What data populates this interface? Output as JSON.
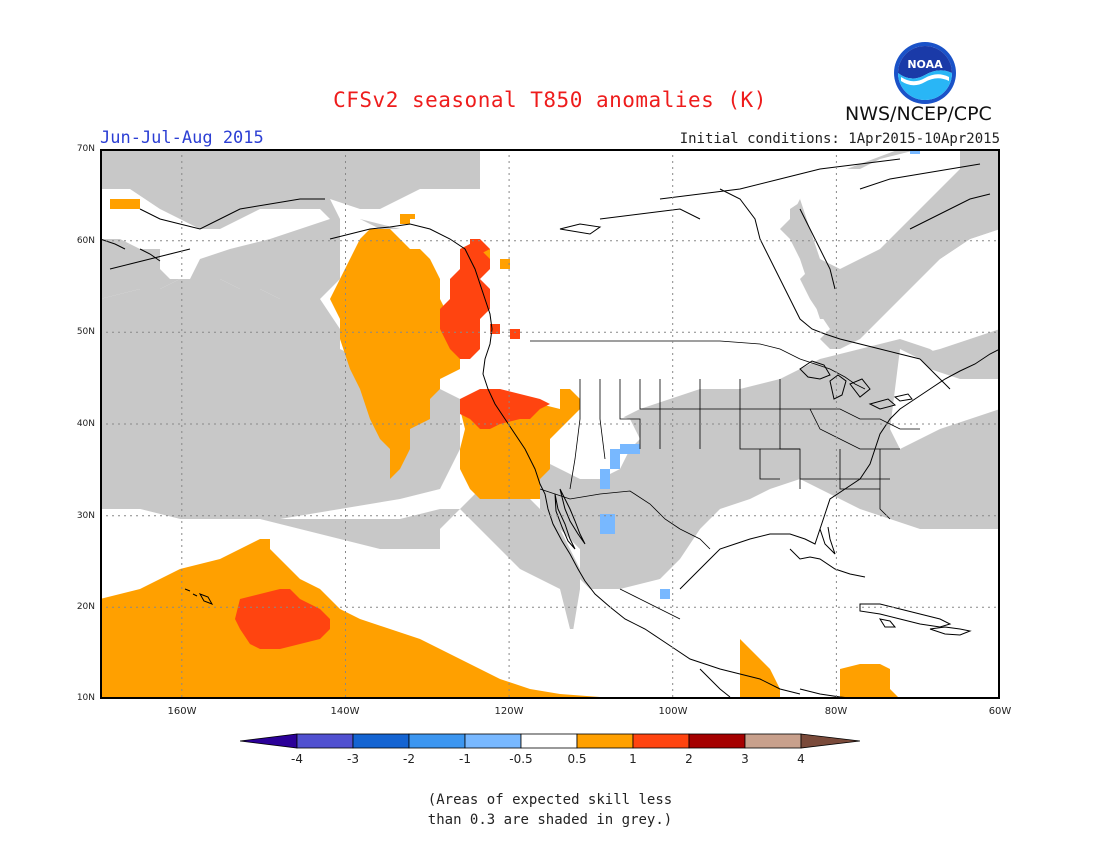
{
  "header": {
    "title": "CFSv2 seasonal T850 anomalies (K)",
    "season": "Jun-Jul-Aug 2015",
    "initial_conditions": "Initial conditions: 1Apr2015-10Apr2015",
    "agency": "NWS/NCEP/CPC",
    "logo_text": "NOAA"
  },
  "map": {
    "region": "North America and Northeast Pacific",
    "lat_range": [
      10,
      70
    ],
    "lon_range": [
      -170,
      -60
    ],
    "lat_labels": [
      "70N",
      "60N",
      "50N",
      "40N",
      "30N",
      "20N",
      "10N"
    ],
    "lon_labels": [
      "160W",
      "140W",
      "120W",
      "100W",
      "80W",
      "60W"
    ],
    "grid": "dotted",
    "skill_mask_color": "#c8c8c8",
    "anomaly_areas": [
      {
        "region": "Gulf of Alaska / British Columbia coast",
        "anomaly": "0.5 to 1",
        "color": "#ffa000"
      },
      {
        "region": "Pacific Northwest coast",
        "anomaly": "1 to 2",
        "color": "#ff4410"
      },
      {
        "region": "Northern California / Nevada",
        "anomaly": "1 to 2",
        "color": "#ff4410"
      },
      {
        "region": "California / Baja California",
        "anomaly": "0.5 to 1",
        "color": "#ffa000"
      },
      {
        "region": "Central Pacific near Hawaii",
        "anomaly": "0.5 to 1",
        "color": "#ffa000"
      },
      {
        "region": "Southeast of Hawaii",
        "anomaly": "1 to 2",
        "color": "#ff4410"
      },
      {
        "region": "Southwest US",
        "anomaly": "-1 to -0.5",
        "color": "#78b8ff"
      },
      {
        "region": "Central America / Caribbean",
        "anomaly": "0.5 to 1",
        "color": "#ffa000"
      }
    ]
  },
  "colorbar": {
    "ticks": [
      "-4",
      "-3",
      "-2",
      "-1",
      "-0.5",
      "0.5",
      "1",
      "2",
      "3",
      "4"
    ],
    "colors": [
      "#2b0098",
      "#5050d0",
      "#1464d2",
      "#3c96f0",
      "#78b8ff",
      "#ffffff",
      "#ffa000",
      "#ff4410",
      "#a50000",
      "#c8a08c",
      "#7a4a3a"
    ]
  },
  "note": {
    "line1": "(Areas of expected skill less",
    "line2": "than 0.3 are shaded in grey.)"
  }
}
